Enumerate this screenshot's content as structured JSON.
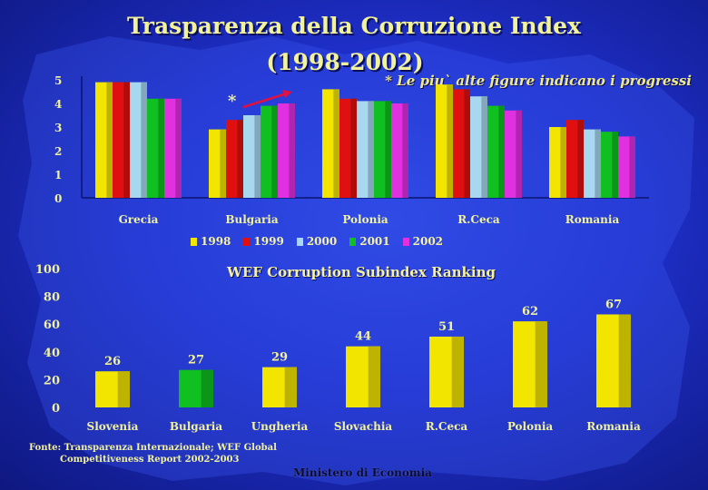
{
  "slide": {
    "title_line1": "Trasparenza della Corruzione Index",
    "title_line2": "(1998-2002)",
    "note": "* Le piu` alte figure indicano i progressi",
    "star_marker": "*",
    "subtitle": "WEF Corruption Subindex Ranking",
    "source_line1": "Fonte: Transparenza Internazionale; WEF Global",
    "source_line2": "Competitiveness Report 2002-2003",
    "ministry": "Ministero di Economia"
  },
  "colors": {
    "background": "#1e2fc8",
    "text": "#f2f29a",
    "y1998": "#f2e600",
    "y1999": "#e01010",
    "y2000": "#a8d8f0",
    "y2001": "#10c020",
    "y2002": "#e030e0",
    "wef_bar": "#f2e600",
    "wef_highlight": "#10c020",
    "arrow": "#e01040"
  },
  "chart_data": [
    {
      "type": "bar",
      "title": "Trasparenza della Corruzione Index (1998-2002)",
      "categories": [
        "Grecia",
        "Bulgaria",
        "Polonia",
        "R.Ceca",
        "Romania"
      ],
      "series": [
        {
          "name": "1998",
          "values": [
            4.9,
            2.9,
            4.6,
            4.8,
            3.0
          ]
        },
        {
          "name": "1999",
          "values": [
            4.9,
            3.3,
            4.2,
            4.6,
            3.3
          ]
        },
        {
          "name": "2000",
          "values": [
            4.9,
            3.5,
            4.1,
            4.3,
            2.9
          ]
        },
        {
          "name": "2001",
          "values": [
            4.2,
            3.9,
            4.1,
            3.9,
            2.8
          ]
        },
        {
          "name": "2002",
          "values": [
            4.2,
            4.0,
            4.0,
            3.7,
            2.6
          ]
        }
      ],
      "ylim": [
        0,
        5
      ],
      "yticks": [
        0,
        1,
        2,
        3,
        4,
        5
      ],
      "legend": "bottom",
      "grid": false
    },
    {
      "type": "bar",
      "title": "WEF Corruption Subindex Ranking",
      "categories": [
        "Slovenia",
        "Bulgaria",
        "Ungheria",
        "Slovachia",
        "R.Ceca",
        "Polonia",
        "Romania"
      ],
      "values": [
        26,
        27,
        29,
        44,
        51,
        62,
        67
      ],
      "value_labels": [
        "26",
        "27",
        "29",
        "44",
        "51",
        "62",
        "67"
      ],
      "highlight": "Bulgaria",
      "ylim": [
        0,
        100
      ],
      "yticks": [
        0,
        20,
        40,
        60,
        80,
        100
      ],
      "grid": false
    }
  ]
}
